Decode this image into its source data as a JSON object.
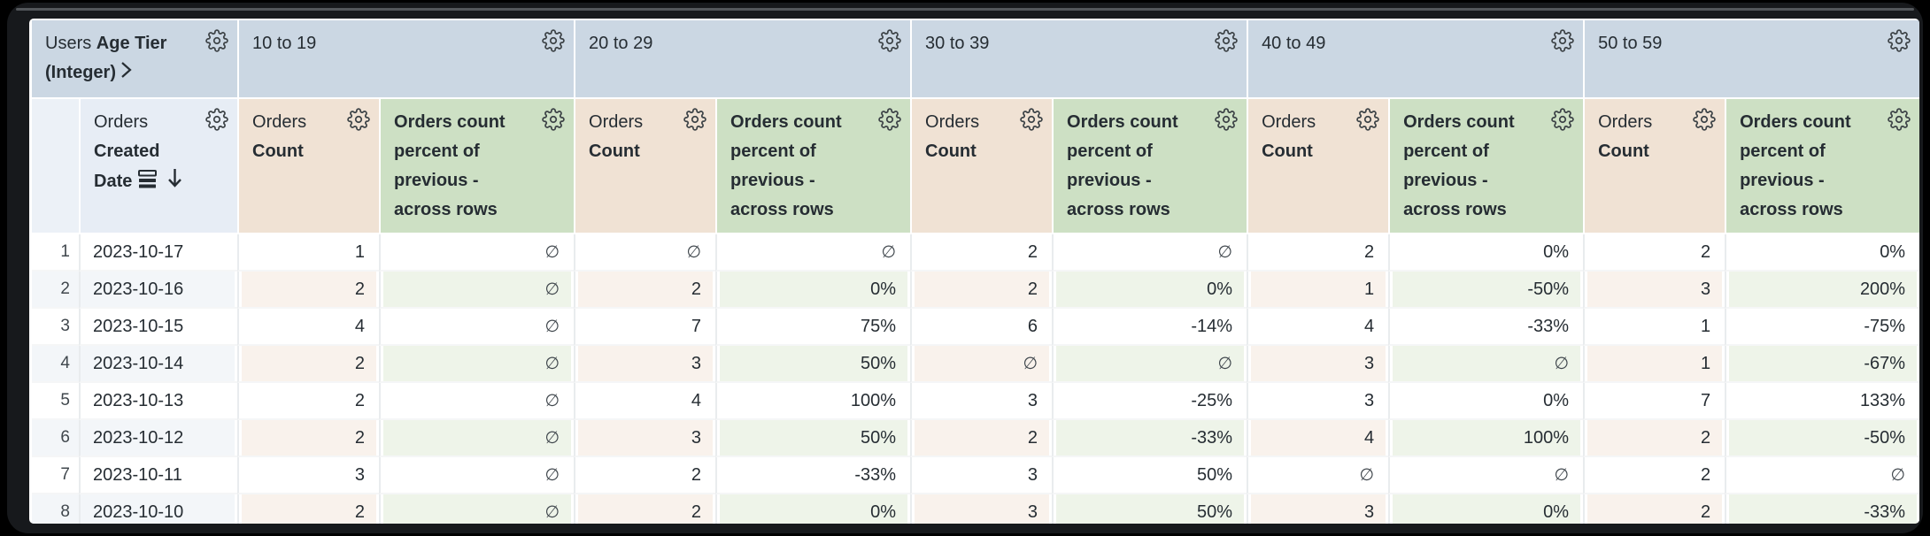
{
  "window": {
    "background": "#000000",
    "frame_color": "#17191c"
  },
  "colors": {
    "pivot_header_bg": "#cbd7e3",
    "dimension_header_bg": "#e7edf5",
    "row_number_header_bg": "#ecf1f7",
    "count_header_bg": "#f0e2d4",
    "percent_header_bg": "#cde0c4",
    "even_row_dimension_bg": "#f3f6f9",
    "even_row_count_bg": "#f9f2ec",
    "even_row_percent_bg": "#eef4e9",
    "text": "#262d33",
    "icon": "#3d4347"
  },
  "icons": {
    "header_menu": "gear-icon",
    "pivot_expand": "chevron-right-icon",
    "date_granularity": "stacked-bars-icon",
    "sort_direction": "arrow-down-icon"
  },
  "table": {
    "pivot_field": {
      "view": "Users",
      "field": "Age Tier (Integer)"
    },
    "row_field": {
      "view": "Orders",
      "field": "Created Date"
    },
    "pivot_values": [
      "10 to 19",
      "20 to 29",
      "30 to 39",
      "40 to 49",
      "50 to 59"
    ],
    "measure_count": {
      "view": "Orders",
      "field": "Count"
    },
    "measure_percent": {
      "label": "Orders count percent of previous - across rows"
    },
    "null_symbol": "∅",
    "rows": [
      {
        "num": "1",
        "date": "2023-10-17",
        "cells": [
          "1",
          "∅",
          "∅",
          "∅",
          "2",
          "∅",
          "2",
          "0%",
          "2",
          "0%"
        ]
      },
      {
        "num": "2",
        "date": "2023-10-16",
        "cells": [
          "2",
          "∅",
          "2",
          "0%",
          "2",
          "0%",
          "1",
          "-50%",
          "3",
          "200%"
        ]
      },
      {
        "num": "3",
        "date": "2023-10-15",
        "cells": [
          "4",
          "∅",
          "7",
          "75%",
          "6",
          "-14%",
          "4",
          "-33%",
          "1",
          "-75%"
        ]
      },
      {
        "num": "4",
        "date": "2023-10-14",
        "cells": [
          "2",
          "∅",
          "3",
          "50%",
          "∅",
          "∅",
          "3",
          "∅",
          "1",
          "-67%"
        ]
      },
      {
        "num": "5",
        "date": "2023-10-13",
        "cells": [
          "2",
          "∅",
          "4",
          "100%",
          "3",
          "-25%",
          "3",
          "0%",
          "7",
          "133%"
        ]
      },
      {
        "num": "6",
        "date": "2023-10-12",
        "cells": [
          "2",
          "∅",
          "3",
          "50%",
          "2",
          "-33%",
          "4",
          "100%",
          "2",
          "-50%"
        ]
      },
      {
        "num": "7",
        "date": "2023-10-11",
        "cells": [
          "3",
          "∅",
          "2",
          "-33%",
          "3",
          "50%",
          "∅",
          "∅",
          "2",
          "∅"
        ]
      },
      {
        "num": "8",
        "date": "2023-10-10",
        "cells": [
          "2",
          "∅",
          "2",
          "0%",
          "3",
          "50%",
          "3",
          "0%",
          "2",
          "-33%"
        ]
      }
    ]
  }
}
